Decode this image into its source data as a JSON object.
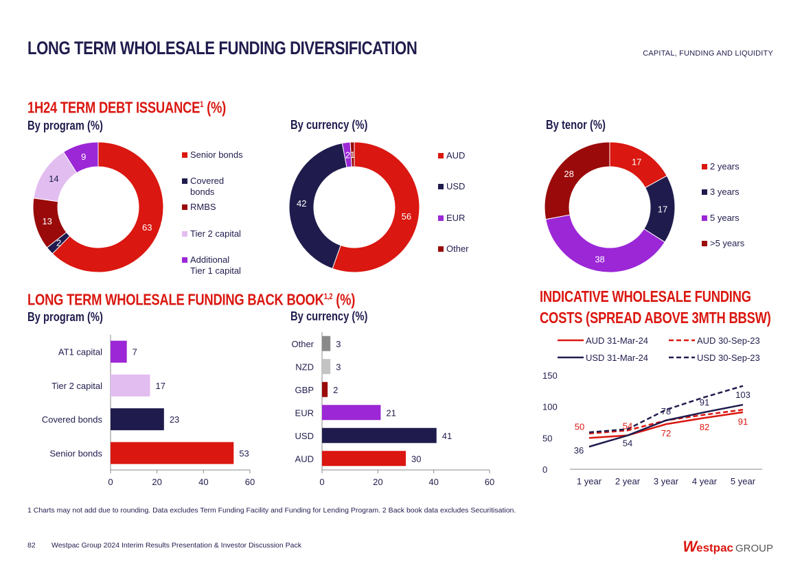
{
  "header": {
    "title": "LONG TERM WHOLESALE FUNDING DIVERSIFICATION",
    "section": "CAPITAL, FUNDING AND LIQUIDITY"
  },
  "issuance": {
    "title": "1H24 TERM DEBT ISSUANCE",
    "sup": "1",
    "suffix": " (%)"
  },
  "backbook": {
    "title": "LONG TERM WHOLESALE FUNDING BACK BOOK",
    "sup": "1,2",
    "suffix": " (%)"
  },
  "costs": {
    "title_line1": "INDICATIVE WHOLESALE FUNDING",
    "title_line2": "COSTS (SPREAD ABOVE 3MTH BBSW)"
  },
  "colors": {
    "red": "#da1710",
    "navy": "#1f1c4d",
    "purple": "#9b27d6",
    "lilac": "#e2bdf0",
    "darkred": "#9a0a0a",
    "grey": "#8a8a8a",
    "lightgrey": "#c4c4c4"
  },
  "chart_data": [
    {
      "id": "donut-program",
      "type": "pie",
      "title": "By program (%)",
      "categories": [
        "Senior bonds",
        "Covered bonds",
        "RMBS",
        "Tier 2 capital",
        "Additional Tier 1 capital"
      ],
      "legend_labels": [
        "Senior bonds",
        "Covered\nbonds",
        "RMBS",
        "Tier 2 capital",
        "Additional\nTier 1 capital"
      ],
      "values": [
        63,
        2,
        13,
        14,
        9
      ],
      "colors": [
        "#da1710",
        "#1f1c4d",
        "#9a0a0a",
        "#e2bdf0",
        "#9b27d6"
      ],
      "label_colors": [
        "#ffffff",
        "#ffffff",
        "#ffffff",
        "#1f1c4d",
        "#ffffff"
      ]
    },
    {
      "id": "donut-currency",
      "type": "pie",
      "title": "By currency (%)",
      "categories": [
        "AUD",
        "USD",
        "EUR",
        "Other"
      ],
      "legend_labels": [
        "AUD",
        "USD",
        "EUR",
        "Other"
      ],
      "values": [
        56,
        42,
        2,
        1
      ],
      "colors": [
        "#da1710",
        "#1f1c4d",
        "#9b27d6",
        "#9a0a0a"
      ],
      "label_colors": [
        "#ffffff",
        "#ffffff",
        "#ffffff",
        "#ffffff"
      ]
    },
    {
      "id": "donut-tenor",
      "type": "pie",
      "title": "By tenor (%)",
      "categories": [
        "2 years",
        "3 years",
        "5 years",
        ">5 years"
      ],
      "legend_labels": [
        "2 years",
        "3 years",
        "5 years",
        ">5 years"
      ],
      "values": [
        17,
        17,
        38,
        28
      ],
      "colors": [
        "#da1710",
        "#1f1c4d",
        "#9b27d6",
        "#9a0a0a"
      ],
      "label_colors": [
        "#ffffff",
        "#ffffff",
        "#ffffff",
        "#ffffff"
      ]
    },
    {
      "id": "bar-program",
      "type": "bar",
      "orientation": "horizontal",
      "title": "By program (%)",
      "categories": [
        "AT1 capital",
        "Tier 2 capital",
        "Covered bonds",
        "Senior bonds"
      ],
      "values": [
        7,
        17,
        23,
        53
      ],
      "colors": [
        "#9b27d6",
        "#e2bdf0",
        "#1f1c4d",
        "#da1710"
      ],
      "xlim": [
        0,
        60
      ],
      "xticks": [
        0,
        20,
        40,
        60
      ]
    },
    {
      "id": "bar-currency",
      "type": "bar",
      "orientation": "horizontal",
      "title": "By currency (%)",
      "categories": [
        "Other",
        "NZD",
        "GBP",
        "EUR",
        "USD",
        "AUD"
      ],
      "values": [
        3,
        3,
        2,
        21,
        41,
        30
      ],
      "colors": [
        "#8a8a8a",
        "#c4c4c4",
        "#9a0a0a",
        "#9b27d6",
        "#1f1c4d",
        "#da1710"
      ],
      "xlim": [
        0,
        60
      ],
      "xticks": [
        0,
        20,
        40,
        60
      ]
    },
    {
      "id": "line-costs",
      "type": "line",
      "title": "INDICATIVE WHOLESALE FUNDING COSTS (SPREAD ABOVE 3MTH BBSW)",
      "categories": [
        "1 year",
        "2 year",
        "3 year",
        "4 year",
        "5 year"
      ],
      "ylim": [
        0,
        150
      ],
      "yticks": [
        0,
        50,
        100,
        150
      ],
      "series": [
        {
          "name": "AUD 31-Mar-24",
          "values": [
            50,
            54,
            72,
            82,
            91
          ],
          "color": "#da1710",
          "dashed": false,
          "show_labels": true,
          "label_pos": "below"
        },
        {
          "name": "AUD 30-Sep-23",
          "values": [
            57,
            62,
            78,
            87,
            95
          ],
          "color": "#da1710",
          "dashed": true,
          "show_labels": false
        },
        {
          "name": "USD 31-Mar-24",
          "values": [
            36,
            54,
            78,
            91,
            103
          ],
          "color": "#1f1c4d",
          "dashed": false,
          "show_labels": true,
          "label_pos": "above"
        },
        {
          "name": "USD 30-Sep-23",
          "values": [
            59,
            64,
            95,
            115,
            133
          ],
          "color": "#1f1c4d",
          "dashed": true,
          "show_labels": false
        }
      ]
    }
  ],
  "footnote": "1 Charts may not add due to rounding. Data excludes Term Funding Facility and Funding for Lending Program. 2 Back book data excludes Securitisation.",
  "footer": {
    "page": "82",
    "text": "Westpac Group 2024 Interim Results Presentation & Investor Discussion Pack",
    "logo_w": "W",
    "logo_brand": "estpac",
    "logo_group": "GROUP"
  }
}
